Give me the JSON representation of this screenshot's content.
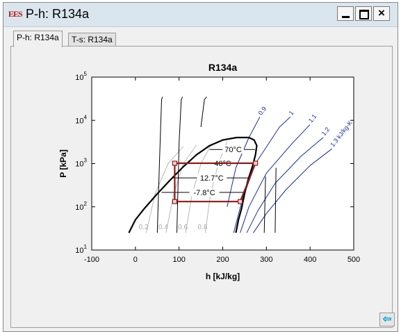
{
  "window": {
    "title": "P-h: R134a",
    "app_icon_text": "EES",
    "min_label": "_",
    "max_label": "",
    "close_label": "×"
  },
  "tabs": [
    {
      "label": "P-h: R134a",
      "active": true
    },
    {
      "label": "T-s: R134a",
      "active": false
    }
  ],
  "icons": {
    "app": "ees-logo-icon",
    "back": "back-arrow-icon"
  },
  "back_button": {
    "glyph": "⇦"
  },
  "chart_data": {
    "type": "line",
    "title": "R134a",
    "xlabel": "h [kJ/kg]",
    "ylabel": "P [kPa]",
    "xlim": [
      -100,
      500
    ],
    "ylim": [
      10,
      100000
    ],
    "y_scale": "log",
    "x_ticks": [
      -100,
      0,
      100,
      200,
      300,
      400,
      500
    ],
    "x_tick_labels": [
      "-100",
      "0",
      "100",
      "200",
      "300",
      "400",
      "500"
    ],
    "y_ticks": [
      10,
      100,
      1000,
      10000,
      100000
    ],
    "y_tick_labels": [
      {
        "base": "10",
        "exp": "1"
      },
      {
        "base": "10",
        "exp": "2"
      },
      {
        "base": "10",
        "exp": "3"
      },
      {
        "base": "10",
        "exp": "4"
      },
      {
        "base": "10",
        "exp": "5"
      }
    ],
    "grid": false,
    "colors": {
      "dome": "#000000",
      "isotherm": "#000000",
      "quality": "#b8b8b8",
      "entropy": "#1a2a9a",
      "cycle": "#8b1a1a"
    },
    "saturation_dome": {
      "liquid": [
        {
          "h": -15,
          "P": 25
        },
        {
          "h": 0,
          "P": 50
        },
        {
          "h": 20,
          "P": 90
        },
        {
          "h": 50,
          "P": 200
        },
        {
          "h": 80,
          "P": 420
        },
        {
          "h": 110,
          "P": 850
        },
        {
          "h": 140,
          "P": 1600
        },
        {
          "h": 170,
          "P": 2600
        },
        {
          "h": 200,
          "P": 3500
        },
        {
          "h": 232,
          "P": 4000
        }
      ],
      "vapor": [
        {
          "h": 232,
          "P": 4000
        },
        {
          "h": 260,
          "P": 4000
        },
        {
          "h": 272,
          "P": 3500
        },
        {
          "h": 278,
          "P": 2600
        },
        {
          "h": 275,
          "P": 1600
        },
        {
          "h": 268,
          "P": 850
        },
        {
          "h": 258,
          "P": 420
        },
        {
          "h": 250,
          "P": 200
        },
        {
          "h": 243,
          "P": 90
        },
        {
          "h": 236,
          "P": 50
        },
        {
          "h": 230,
          "P": 25
        }
      ]
    },
    "isotherms": [
      {
        "label": "70°C",
        "P": 2117,
        "h_start": 170,
        "h_end": 274,
        "label_h": 224
      },
      {
        "label": "40°C",
        "P": 1017,
        "h_start": 130,
        "h_end": 271,
        "label_h": 200
      },
      {
        "label": "12.7°C",
        "P": 467,
        "h_start": 85,
        "h_end": 262,
        "label_h": 175
      },
      {
        "label": "-7.8°C",
        "P": 215,
        "h_start": 60,
        "h_end": 251,
        "label_h": 158
      }
    ],
    "isotherm_branches": [
      {
        "liquid": [
          {
            "h": 50,
            "P": 25
          },
          {
            "h": 55,
            "P": 1000
          },
          {
            "h": 60,
            "P": 30000
          },
          {
            "h": 62,
            "P": 35000
          }
        ],
        "vapor": [
          {
            "h": 295,
            "P": 25
          },
          {
            "h": 298,
            "P": 500
          }
        ]
      },
      {
        "liquid": [
          {
            "h": 95,
            "P": 25
          },
          {
            "h": 100,
            "P": 3000
          },
          {
            "h": 105,
            "P": 30000
          },
          {
            "h": 108,
            "P": 35000
          }
        ],
        "vapor": [
          {
            "h": 320,
            "P": 25
          },
          {
            "h": 322,
            "P": 800
          }
        ]
      },
      {
        "liquid": [
          {
            "h": 150,
            "P": 7000
          },
          {
            "h": 158,
            "P": 30000
          },
          {
            "h": 163,
            "P": 35000
          }
        ]
      }
    ],
    "quality_lines": [
      {
        "label": "0.2",
        "points": [
          {
            "h": 25,
            "P": 25
          },
          {
            "h": 45,
            "P": 200
          },
          {
            "h": 75,
            "P": 1000
          },
          {
            "h": 110,
            "P": 2500
          }
        ]
      },
      {
        "label": "0.4",
        "points": [
          {
            "h": 70,
            "P": 25
          },
          {
            "h": 88,
            "P": 200
          },
          {
            "h": 110,
            "P": 1000
          },
          {
            "h": 140,
            "P": 2700
          }
        ]
      },
      {
        "label": "0.6",
        "points": [
          {
            "h": 115,
            "P": 25
          },
          {
            "h": 130,
            "P": 200
          },
          {
            "h": 150,
            "P": 1000
          },
          {
            "h": 175,
            "P": 2900
          }
        ]
      },
      {
        "label": "0.8",
        "points": [
          {
            "h": 160,
            "P": 25
          },
          {
            "h": 172,
            "P": 200
          },
          {
            "h": 190,
            "P": 1000
          },
          {
            "h": 210,
            "P": 3200
          }
        ]
      }
    ],
    "entropy_lines": [
      {
        "label": "0.9",
        "points": [
          {
            "h": 210,
            "P": 100
          },
          {
            "h": 230,
            "P": 800
          },
          {
            "h": 260,
            "P": 4000
          },
          {
            "h": 285,
            "P": 12000
          }
        ]
      },
      {
        "label": "1",
        "points": [
          {
            "h": 225,
            "P": 25
          },
          {
            "h": 245,
            "P": 150
          },
          {
            "h": 275,
            "P": 1000
          },
          {
            "h": 330,
            "P": 7000
          },
          {
            "h": 355,
            "P": 12000
          }
        ]
      },
      {
        "label": "1.1",
        "points": [
          {
            "h": 240,
            "P": 25
          },
          {
            "h": 260,
            "P": 100
          },
          {
            "h": 300,
            "P": 600
          },
          {
            "h": 360,
            "P": 3000
          },
          {
            "h": 400,
            "P": 8000
          }
        ]
      },
      {
        "label": "1.2",
        "points": [
          {
            "h": 255,
            "P": 25
          },
          {
            "h": 280,
            "P": 80
          },
          {
            "h": 320,
            "P": 350
          },
          {
            "h": 380,
            "P": 1500
          },
          {
            "h": 430,
            "P": 4000
          }
        ]
      },
      {
        "label": "1.3 kJ/kg-K",
        "points": [
          {
            "h": 270,
            "P": 25
          },
          {
            "h": 300,
            "P": 70
          },
          {
            "h": 345,
            "P": 250
          },
          {
            "h": 400,
            "P": 900
          },
          {
            "h": 450,
            "P": 2200
          }
        ]
      }
    ],
    "cycle": [
      {
        "h": 90,
        "P": 1017
      },
      {
        "h": 275,
        "P": 1017
      },
      {
        "h": 240,
        "P": 132
      },
      {
        "h": 90,
        "P": 132
      }
    ]
  }
}
